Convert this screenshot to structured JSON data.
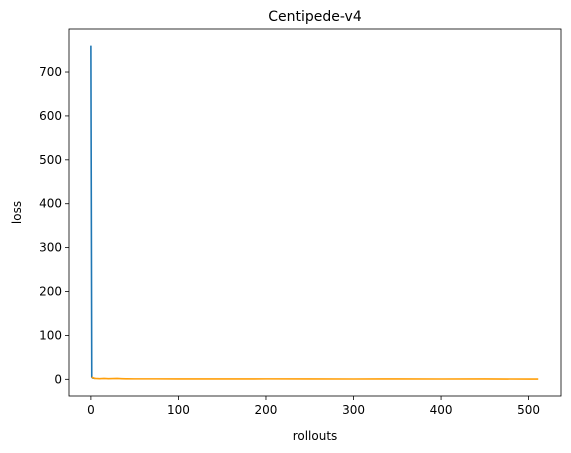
{
  "chart_data": {
    "type": "line",
    "title": "Centipede-v4",
    "xlabel": "rollouts",
    "ylabel": "loss",
    "xlim": [
      -25,
      537
    ],
    "ylim": [
      -38,
      798
    ],
    "x_ticks": [
      0,
      100,
      200,
      300,
      400,
      500
    ],
    "y_ticks": [
      0,
      100,
      200,
      300,
      400,
      500,
      600,
      700
    ],
    "x_tick_labels": [
      "0",
      "100",
      "200",
      "300",
      "400",
      "500"
    ],
    "y_tick_labels": [
      "0",
      "100",
      "200",
      "300",
      "400",
      "500",
      "600",
      "700"
    ],
    "grid": false,
    "legend": false,
    "series": [
      {
        "color": "#1f77b4",
        "x": [
          0,
          1,
          2,
          3,
          4,
          5
        ],
        "values": [
          760,
          5,
          3,
          2.5,
          2.2,
          2
        ]
      },
      {
        "color": "#ff9f0a",
        "x": [
          1,
          3,
          5,
          10,
          15,
          20,
          25,
          30,
          35,
          40,
          50,
          75,
          100,
          150,
          200,
          250,
          300,
          350,
          400,
          450,
          500,
          511
        ],
        "values": [
          5,
          3,
          2,
          1.5,
          2,
          1.5,
          1.8,
          2,
          1.5,
          1.2,
          1,
          1,
          0.8,
          0.9,
          1,
          0.8,
          0.7,
          0.8,
          0.7,
          0.8,
          0.6,
          0.5
        ]
      }
    ]
  }
}
